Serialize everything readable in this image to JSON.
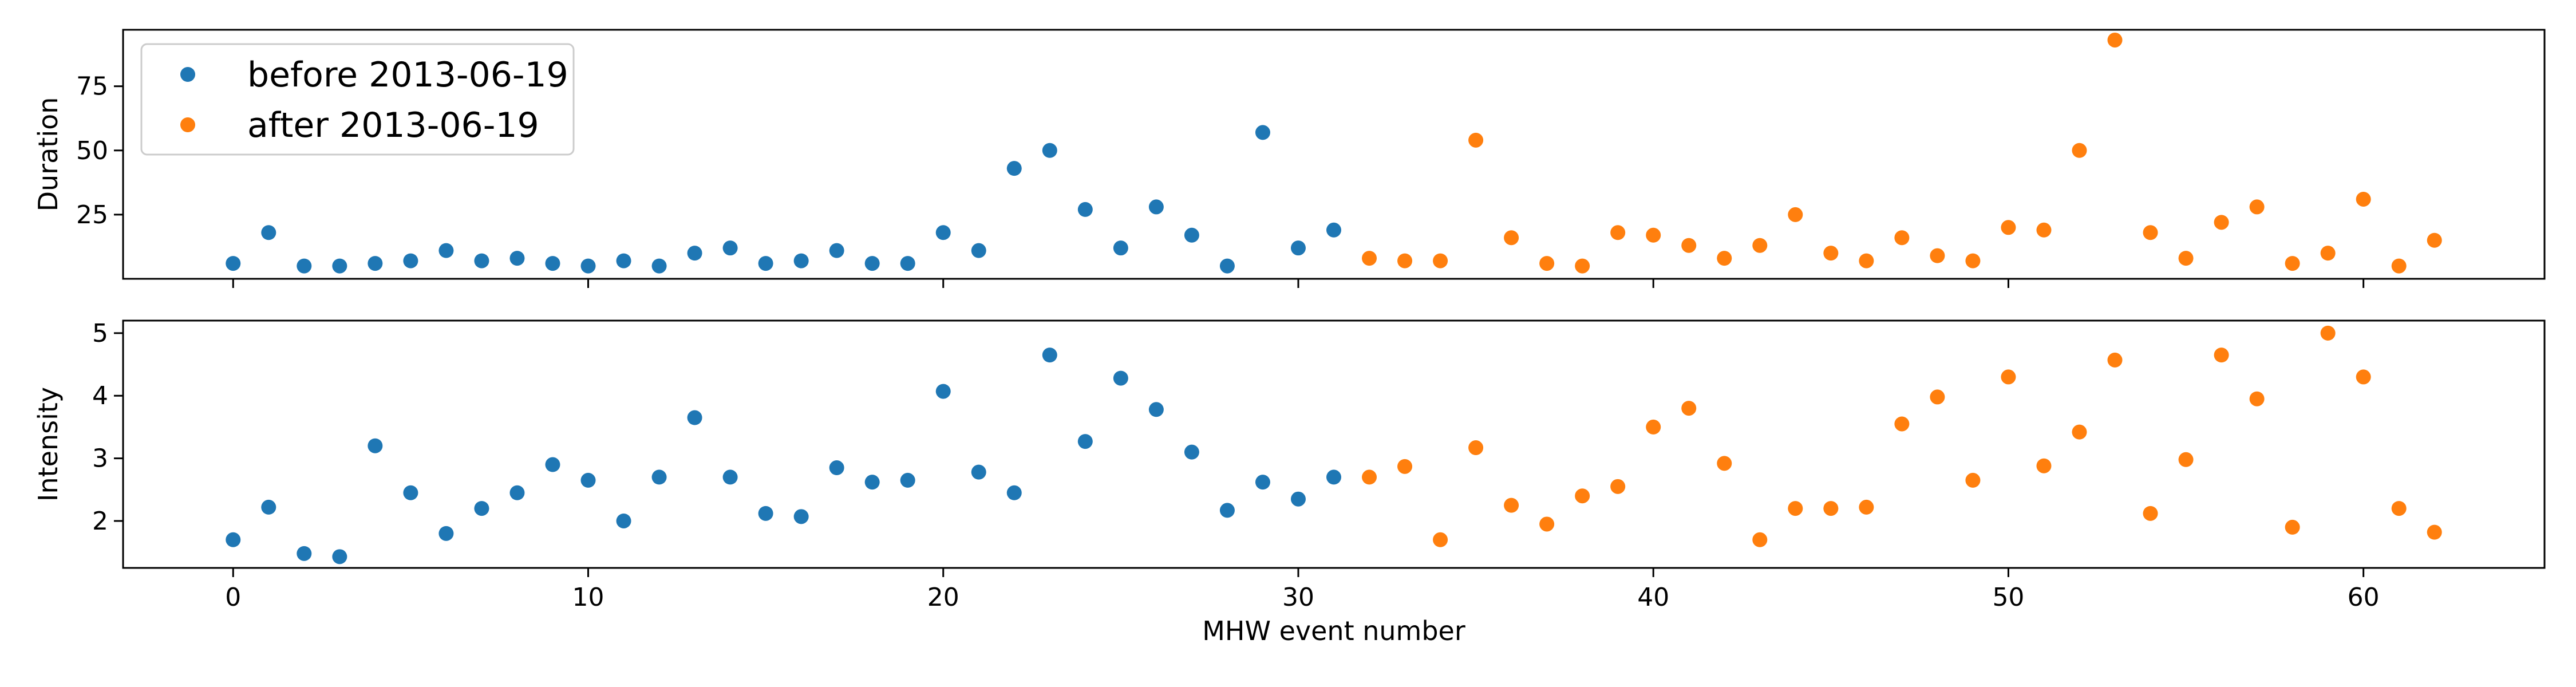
{
  "chart_data": [
    {
      "type": "scatter",
      "panel": "top",
      "ylabel": "Duration",
      "xlabel": "",
      "xlim": [
        -3.1,
        65.1
      ],
      "ylim": [
        0,
        97
      ],
      "yticks": [
        25,
        50,
        75
      ],
      "xticks": [
        0,
        10,
        20,
        30,
        40,
        50,
        60
      ],
      "show_xtick_labels": false,
      "grid": false,
      "legend": {
        "placement": "top-left"
      },
      "series": [
        {
          "name": "before 2013-06-19",
          "color": "#1f77b4",
          "x": [
            0,
            1,
            2,
            3,
            4,
            5,
            6,
            7,
            8,
            9,
            10,
            11,
            12,
            13,
            14,
            15,
            16,
            17,
            18,
            19,
            20,
            21,
            22,
            23,
            24,
            25,
            26,
            27,
            28,
            29,
            30,
            31
          ],
          "y": [
            6,
            18,
            5,
            5,
            6,
            7,
            11,
            7,
            8,
            6,
            5,
            7,
            5,
            10,
            12,
            6,
            7,
            11,
            6,
            6,
            18,
            11,
            43,
            50,
            27,
            12,
            28,
            17,
            5,
            57,
            12,
            19
          ]
        },
        {
          "name": "after 2013-06-19",
          "color": "#ff7f0e",
          "x": [
            32,
            33,
            34,
            35,
            36,
            37,
            38,
            39,
            40,
            41,
            42,
            43,
            44,
            45,
            46,
            47,
            48,
            49,
            50,
            51,
            52,
            53,
            54,
            55,
            56,
            57,
            58,
            59,
            60,
            61,
            62
          ],
          "y": [
            8,
            7,
            7,
            54,
            16,
            6,
            5,
            18,
            17,
            13,
            8,
            13,
            25,
            10,
            7,
            16,
            9,
            7,
            20,
            19,
            50,
            93,
            18,
            8,
            22,
            28,
            6,
            10,
            31,
            5,
            15
          ]
        }
      ]
    },
    {
      "type": "scatter",
      "panel": "bottom",
      "ylabel": "Intensity",
      "xlabel": "MHW event number",
      "xlim": [
        -3.1,
        65.1
      ],
      "ylim": [
        1.25,
        5.2
      ],
      "yticks": [
        2,
        3,
        4,
        5
      ],
      "xticks": [
        0,
        10,
        20,
        30,
        40,
        50,
        60
      ],
      "show_xtick_labels": true,
      "grid": false,
      "series": [
        {
          "name": "before 2013-06-19",
          "color": "#1f77b4",
          "x": [
            0,
            1,
            2,
            3,
            4,
            5,
            6,
            7,
            8,
            9,
            10,
            11,
            12,
            13,
            14,
            15,
            16,
            17,
            18,
            19,
            20,
            21,
            22,
            23,
            24,
            25,
            26,
            27,
            28,
            29,
            30,
            31
          ],
          "y": [
            1.7,
            2.22,
            1.48,
            1.43,
            3.2,
            2.45,
            1.8,
            2.2,
            2.45,
            2.9,
            2.65,
            2.0,
            2.7,
            3.65,
            2.7,
            2.12,
            2.07,
            2.85,
            2.62,
            2.65,
            4.07,
            2.78,
            2.45,
            4.65,
            3.27,
            4.28,
            3.78,
            3.1,
            2.17,
            2.62,
            2.35,
            2.7
          ]
        },
        {
          "name": "after 2013-06-19",
          "color": "#ff7f0e",
          "x": [
            32,
            33,
            34,
            35,
            36,
            37,
            38,
            39,
            40,
            41,
            42,
            43,
            44,
            45,
            46,
            47,
            48,
            49,
            50,
            51,
            52,
            53,
            54,
            55,
            56,
            57,
            58,
            59,
            60,
            61,
            62
          ],
          "y": [
            2.7,
            2.87,
            1.7,
            3.17,
            2.25,
            1.95,
            2.4,
            2.55,
            3.5,
            3.8,
            2.92,
            1.7,
            2.2,
            2.2,
            2.22,
            3.55,
            3.98,
            2.65,
            4.3,
            2.88,
            3.42,
            4.57,
            2.12,
            2.98,
            4.65,
            3.95,
            1.9,
            5.0,
            4.3,
            2.2,
            1.82
          ]
        }
      ]
    }
  ]
}
